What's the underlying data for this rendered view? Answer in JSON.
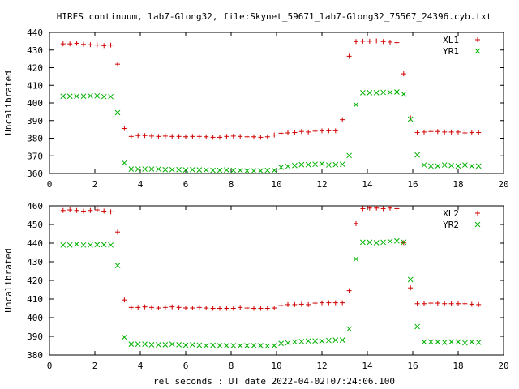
{
  "title": "HIRES continuum, lab7-Glong32, file:Skynet_59671_lab7-Glong32_75567_24396.cyb.txt",
  "xlabel": "rel seconds : UT date 2022-04-02T07:24:06.100",
  "colors": {
    "red": "#d00000",
    "green": "#00b000"
  },
  "chart_data": [
    {
      "type": "scatter",
      "ylabel": "Uncalibrated",
      "xlim": [
        0,
        20
      ],
      "ylim": [
        360,
        440
      ],
      "xticks": [
        "0",
        "2",
        "4",
        "6",
        "8",
        "10",
        "12",
        "14",
        "16",
        "18",
        "20"
      ],
      "yticks": [
        "360",
        "370",
        "380",
        "390",
        "400",
        "410",
        "420",
        "430",
        "440"
      ],
      "legend_position": "top-right",
      "series": [
        {
          "name": "XL1",
          "marker": "plus",
          "color": "#d00000",
          "x": [
            0.6,
            0.9,
            1.2,
            1.5,
            1.8,
            2.1,
            2.4,
            2.7,
            3.0,
            3.3,
            3.6,
            3.9,
            4.2,
            4.5,
            4.8,
            5.1,
            5.4,
            5.7,
            6.0,
            6.3,
            6.6,
            6.9,
            7.2,
            7.5,
            7.8,
            8.1,
            8.4,
            8.7,
            9.0,
            9.3,
            9.6,
            9.9,
            10.2,
            10.5,
            10.8,
            11.1,
            11.4,
            11.7,
            12.0,
            12.3,
            12.6,
            12.9,
            13.2,
            13.5,
            13.8,
            14.1,
            14.4,
            14.7,
            15.0,
            15.3,
            15.6,
            15.9,
            16.2,
            16.5,
            16.8,
            17.1,
            17.4,
            17.7,
            18.0,
            18.3,
            18.6,
            18.9
          ],
          "y": [
            433.5,
            433.5,
            433.8,
            433.2,
            433,
            432.8,
            432.5,
            432.8,
            422,
            385.5,
            381,
            381.5,
            381.5,
            381.2,
            381,
            381.2,
            381,
            381,
            380.8,
            381,
            381,
            380.8,
            380.5,
            380.5,
            381,
            381.2,
            381,
            380.8,
            380.8,
            380.5,
            380.8,
            381.8,
            382.8,
            383,
            383.2,
            383.8,
            383.5,
            384,
            384.2,
            384.2,
            384.2,
            390.5,
            426.5,
            434.8,
            435,
            435,
            435.2,
            434.8,
            434.5,
            434.2,
            416.5,
            391.5,
            383.2,
            383.5,
            383.8,
            383.8,
            383.5,
            383.5,
            383.5,
            383,
            383.2,
            383.2
          ]
        },
        {
          "name": "YR1",
          "marker": "cross",
          "color": "#00b000",
          "x": [
            0.6,
            0.9,
            1.2,
            1.5,
            1.8,
            2.1,
            2.4,
            2.7,
            3.0,
            3.3,
            3.6,
            3.9,
            4.2,
            4.5,
            4.8,
            5.1,
            5.4,
            5.7,
            6.0,
            6.3,
            6.6,
            6.9,
            7.2,
            7.5,
            7.8,
            8.1,
            8.4,
            8.7,
            9.0,
            9.3,
            9.6,
            9.9,
            10.2,
            10.5,
            10.8,
            11.1,
            11.4,
            11.7,
            12.0,
            12.3,
            12.6,
            12.9,
            13.2,
            13.5,
            13.8,
            14.1,
            14.4,
            14.7,
            15.0,
            15.3,
            15.6,
            15.9,
            16.2,
            16.5,
            16.8,
            17.1,
            17.4,
            17.7,
            18.0,
            18.3,
            18.6,
            18.9
          ],
          "y": [
            403.8,
            403.8,
            403.8,
            403.8,
            404,
            404,
            403.6,
            403.6,
            394.5,
            366,
            362.5,
            362.5,
            362.5,
            362.5,
            362.5,
            362.2,
            362.2,
            362.2,
            362,
            362.2,
            362,
            362,
            361.8,
            361.8,
            362,
            361.8,
            361.8,
            361.5,
            361.5,
            361.5,
            361.8,
            361.8,
            363.5,
            364,
            364.5,
            365,
            365,
            365.2,
            365.5,
            364.8,
            365,
            365.2,
            370.2,
            399,
            405.8,
            405.8,
            405.8,
            406,
            406,
            406.2,
            405,
            390.8,
            370.5,
            364.8,
            364.2,
            364.2,
            364.8,
            364.5,
            364.2,
            364.8,
            364.2,
            364.2
          ]
        }
      ]
    },
    {
      "type": "scatter",
      "ylabel": "Uncalibrated",
      "xlim": [
        0,
        20
      ],
      "ylim": [
        380,
        460
      ],
      "xticks": [
        "0",
        "2",
        "4",
        "6",
        "8",
        "10",
        "12",
        "14",
        "16",
        "18",
        "20"
      ],
      "yticks": [
        "380",
        "390",
        "400",
        "410",
        "420",
        "430",
        "440",
        "450",
        "460"
      ],
      "legend_position": "top-right",
      "series": [
        {
          "name": "XL2",
          "marker": "plus",
          "color": "#d00000",
          "x": [
            0.6,
            0.9,
            1.2,
            1.5,
            1.8,
            2.1,
            2.4,
            2.7,
            3.0,
            3.3,
            3.6,
            3.9,
            4.2,
            4.5,
            4.8,
            5.1,
            5.4,
            5.7,
            6.0,
            6.3,
            6.6,
            6.9,
            7.2,
            7.5,
            7.8,
            8.1,
            8.4,
            8.7,
            9.0,
            9.3,
            9.6,
            9.9,
            10.2,
            10.5,
            10.8,
            11.1,
            11.4,
            11.7,
            12.0,
            12.3,
            12.6,
            12.9,
            13.2,
            13.5,
            13.8,
            14.1,
            14.4,
            14.7,
            15.0,
            15.3,
            15.6,
            15.9,
            16.2,
            16.5,
            16.8,
            17.1,
            17.4,
            17.7,
            18.0,
            18.3,
            18.6,
            18.9
          ],
          "y": [
            457.5,
            457.8,
            457.5,
            457.2,
            457.5,
            457.8,
            457.2,
            456.8,
            446,
            409.5,
            405.5,
            405.5,
            405.8,
            405.5,
            405.2,
            405.5,
            405.8,
            405.5,
            405.2,
            405.2,
            405.5,
            405.2,
            405,
            405,
            405,
            405,
            405.5,
            405.2,
            405,
            405,
            405,
            405.2,
            406.5,
            407,
            407,
            407.2,
            407,
            407.8,
            408,
            408,
            408,
            408,
            414.5,
            450.5,
            458.5,
            458.8,
            458.8,
            458.5,
            458.8,
            458.5,
            440.2,
            416,
            407.5,
            407.5,
            407.8,
            407.8,
            407.5,
            407.5,
            407.5,
            407.5,
            407.2,
            407
          ]
        },
        {
          "name": "YR2",
          "marker": "cross",
          "color": "#00b000",
          "x": [
            0.6,
            0.9,
            1.2,
            1.5,
            1.8,
            2.1,
            2.4,
            2.7,
            3.0,
            3.3,
            3.6,
            3.9,
            4.2,
            4.5,
            4.8,
            5.1,
            5.4,
            5.7,
            6.0,
            6.3,
            6.6,
            6.9,
            7.2,
            7.5,
            7.8,
            8.1,
            8.4,
            8.7,
            9.0,
            9.3,
            9.6,
            9.9,
            10.2,
            10.5,
            10.8,
            11.1,
            11.4,
            11.7,
            12.0,
            12.3,
            12.6,
            12.9,
            13.2,
            13.5,
            13.8,
            14.1,
            14.4,
            14.7,
            15.0,
            15.3,
            15.6,
            15.9,
            16.2,
            16.5,
            16.8,
            17.1,
            17.4,
            17.7,
            18.0,
            18.3,
            18.6,
            18.9
          ],
          "y": [
            439,
            439,
            439.5,
            439,
            439,
            439.2,
            439.2,
            439,
            428,
            389.5,
            385.8,
            385.8,
            385.8,
            385.5,
            385.5,
            385.5,
            385.8,
            385.5,
            385.2,
            385.5,
            385.2,
            385,
            385.2,
            385,
            385,
            385,
            385,
            385,
            385,
            385,
            384.8,
            385,
            386.2,
            386.5,
            387,
            387.2,
            387.5,
            387.5,
            387.5,
            387.8,
            388,
            388,
            394,
            431.5,
            440.5,
            440.5,
            440.2,
            440.5,
            441,
            441.2,
            440.5,
            420.5,
            395.2,
            387,
            387,
            387,
            386.8,
            387,
            387,
            386.5,
            387,
            386.8
          ]
        }
      ]
    }
  ]
}
